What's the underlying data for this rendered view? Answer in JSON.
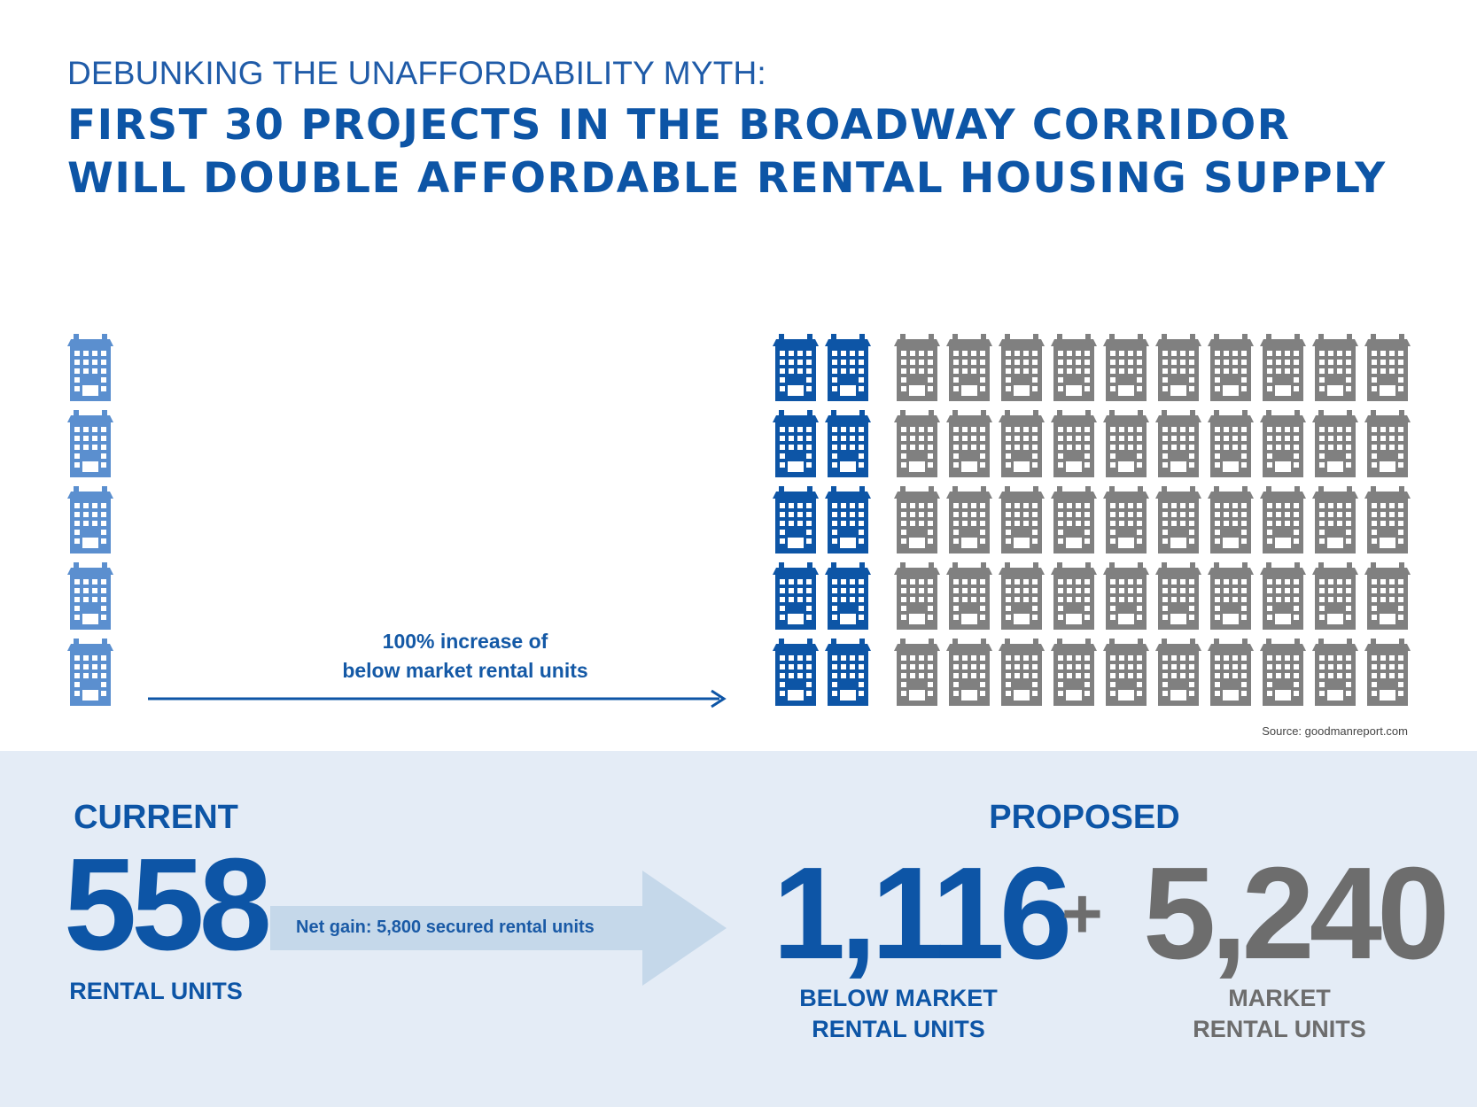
{
  "header": {
    "kicker": "DEBUNKING THE UNAFFORDABILITY MYTH:",
    "title_line1": "FIRST 30 PROJECTS IN THE BROADWAY CORRIDOR",
    "title_line2": "WILL DOUBLE AFFORDABLE RENTAL HOUSING SUPPLY"
  },
  "diagram": {
    "current_buildings": 5,
    "proposed_below_market_buildings": 10,
    "proposed_market_buildings": 50,
    "arrow_caption_line1": "100% increase of",
    "arrow_caption_line2": "below market rental units",
    "source": "Source: goodmanreport.com"
  },
  "summary": {
    "current_label": "CURRENT",
    "current_value": "558",
    "current_unit": "RENTAL UNITS",
    "net_gain": "Net gain: 5,800 secured rental units",
    "proposed_label": "PROPOSED",
    "below_market_value": "1,116",
    "plus": "+",
    "market_value": "5,240",
    "below_market_unit_line1": "BELOW MARKET",
    "below_market_unit_line2": "RENTAL UNITS",
    "market_unit_line1": "MARKET",
    "market_unit_line2": "RENTAL UNITS"
  },
  "colors": {
    "current_building": "#5b8fcf",
    "below_market_building": "#0d55a6",
    "market_building": "#808080",
    "title": "#0d55a6",
    "panel": "#e4ecf6",
    "gain_arrow": "#c5d8ea"
  }
}
